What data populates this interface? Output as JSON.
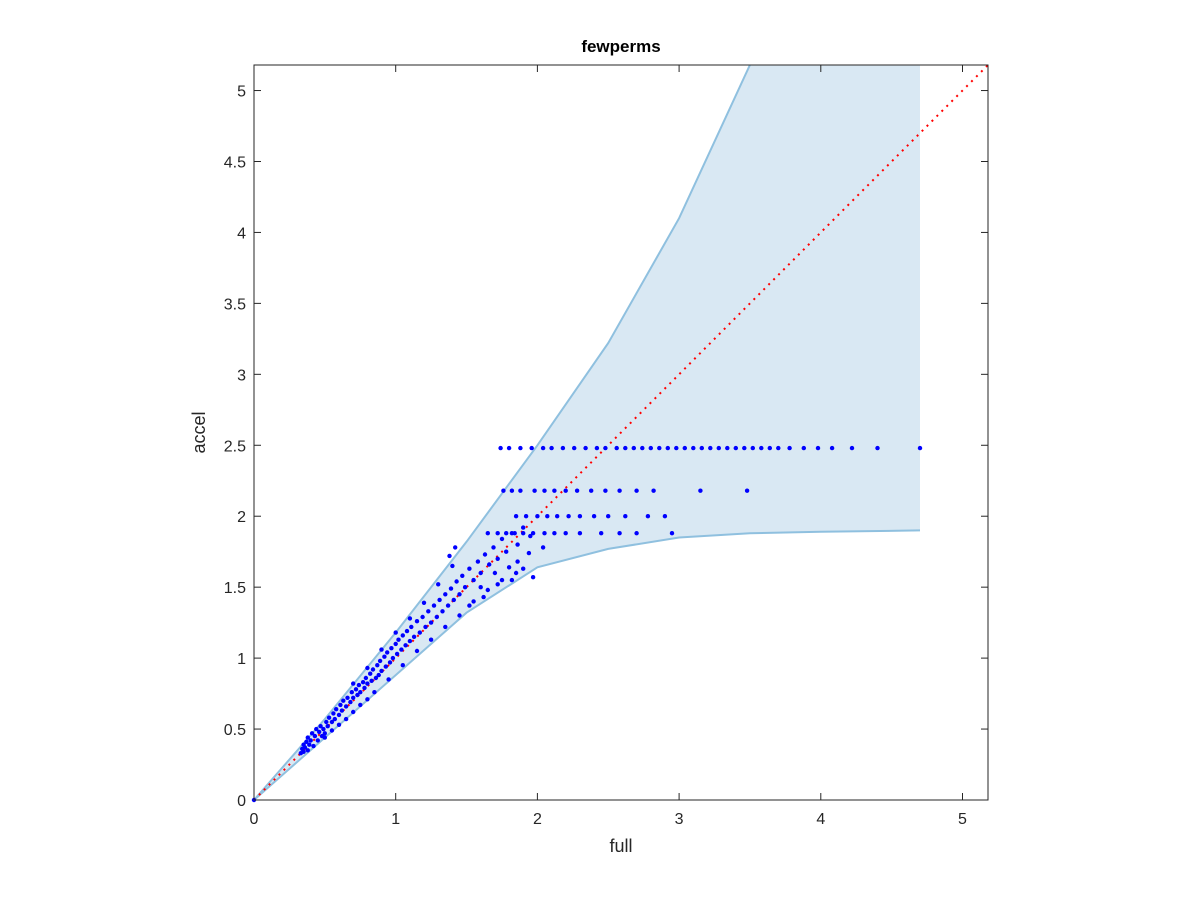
{
  "chart_data": {
    "type": "scatter",
    "title": "fewperms",
    "xlabel": "full",
    "ylabel": "accel",
    "xlim": [
      0,
      5.18
    ],
    "ylim": [
      0,
      5.18
    ],
    "x_ticks": [
      0,
      1,
      2,
      3,
      4,
      5
    ],
    "y_ticks": [
      0,
      0.5,
      1,
      1.5,
      2,
      2.5,
      3,
      3.5,
      4,
      4.5,
      5
    ],
    "x_tick_labels": [
      "0",
      "1",
      "2",
      "3",
      "4",
      "5"
    ],
    "y_tick_labels": [
      "0",
      "0.5",
      "1",
      "1.5",
      "2",
      "2.5",
      "3",
      "3.5",
      "4",
      "4.5",
      "5"
    ],
    "grid": false,
    "colors": {
      "points": "#0000ff",
      "band_fill": "#d9e8f3",
      "band_edge": "#8fc0df",
      "reference_line": "#ff0000",
      "axes": "#262626"
    },
    "band": {
      "x_max": 4.7,
      "upper": [
        [
          0,
          0
        ],
        [
          0.5,
          0.57
        ],
        [
          1,
          1.18
        ],
        [
          1.5,
          1.82
        ],
        [
          2,
          2.5
        ],
        [
          2.5,
          3.22
        ],
        [
          3,
          4.1
        ],
        [
          3.5,
          5.18
        ]
      ],
      "lower": [
        [
          0,
          0
        ],
        [
          0.5,
          0.44
        ],
        [
          1,
          0.88
        ],
        [
          1.5,
          1.32
        ],
        [
          2,
          1.64
        ],
        [
          2.5,
          1.77
        ],
        [
          3,
          1.85
        ],
        [
          3.5,
          1.88
        ],
        [
          4,
          1.89
        ],
        [
          4.7,
          1.9
        ]
      ]
    },
    "reference_line": {
      "style": "dotted",
      "from": [
        0,
        0
      ],
      "to": [
        5.18,
        5.18
      ]
    },
    "series": [
      {
        "points": [
          [
            0.0,
            0.0
          ],
          [
            0.33,
            0.33
          ],
          [
            0.34,
            0.36
          ],
          [
            0.35,
            0.34
          ],
          [
            0.35,
            0.39
          ],
          [
            0.36,
            0.37
          ],
          [
            0.37,
            0.41
          ],
          [
            0.38,
            0.35
          ],
          [
            0.38,
            0.44
          ],
          [
            0.39,
            0.39
          ],
          [
            0.4,
            0.42
          ],
          [
            0.41,
            0.47
          ],
          [
            0.42,
            0.38
          ],
          [
            0.43,
            0.45
          ],
          [
            0.44,
            0.5
          ],
          [
            0.45,
            0.42
          ],
          [
            0.46,
            0.48
          ],
          [
            0.47,
            0.52
          ],
          [
            0.48,
            0.45
          ],
          [
            0.49,
            0.5
          ],
          [
            0.5,
            0.47
          ],
          [
            0.51,
            0.55
          ],
          [
            0.52,
            0.52
          ],
          [
            0.53,
            0.58
          ],
          [
            0.55,
            0.55
          ],
          [
            0.56,
            0.61
          ],
          [
            0.57,
            0.57
          ],
          [
            0.58,
            0.64
          ],
          [
            0.6,
            0.6
          ],
          [
            0.61,
            0.67
          ],
          [
            0.62,
            0.63
          ],
          [
            0.63,
            0.7
          ],
          [
            0.65,
            0.66
          ],
          [
            0.66,
            0.72
          ],
          [
            0.68,
            0.69
          ],
          [
            0.69,
            0.76
          ],
          [
            0.7,
            0.72
          ],
          [
            0.72,
            0.78
          ],
          [
            0.73,
            0.74
          ],
          [
            0.74,
            0.81
          ],
          [
            0.75,
            0.76
          ],
          [
            0.77,
            0.83
          ],
          [
            0.78,
            0.79
          ],
          [
            0.79,
            0.86
          ],
          [
            0.8,
            0.82
          ],
          [
            0.82,
            0.89
          ],
          [
            0.83,
            0.84
          ],
          [
            0.84,
            0.92
          ],
          [
            0.86,
            0.86
          ],
          [
            0.87,
            0.95
          ],
          [
            0.88,
            0.88
          ],
          [
            0.89,
            0.98
          ],
          [
            0.9,
            0.91
          ],
          [
            0.92,
            1.01
          ],
          [
            0.93,
            0.94
          ],
          [
            0.94,
            1.04
          ],
          [
            0.96,
            0.97
          ],
          [
            0.97,
            1.07
          ],
          [
            0.98,
            1.0
          ],
          [
            1.0,
            1.1
          ],
          [
            1.01,
            1.03
          ],
          [
            1.02,
            1.13
          ],
          [
            1.04,
            1.06
          ],
          [
            1.05,
            1.16
          ],
          [
            1.07,
            1.09
          ],
          [
            1.08,
            1.19
          ],
          [
            1.1,
            1.12
          ],
          [
            1.11,
            1.22
          ],
          [
            1.13,
            1.15
          ],
          [
            1.15,
            1.26
          ],
          [
            1.17,
            1.18
          ],
          [
            1.19,
            1.29
          ],
          [
            1.21,
            1.22
          ],
          [
            1.23,
            1.33
          ],
          [
            1.25,
            1.25
          ],
          [
            1.27,
            1.37
          ],
          [
            1.29,
            1.29
          ],
          [
            1.31,
            1.41
          ],
          [
            1.33,
            1.33
          ],
          [
            1.35,
            1.45
          ],
          [
            1.37,
            1.37
          ],
          [
            1.39,
            1.49
          ],
          [
            1.41,
            1.41
          ],
          [
            1.43,
            1.54
          ],
          [
            1.45,
            1.45
          ],
          [
            1.47,
            1.58
          ],
          [
            1.49,
            1.5
          ],
          [
            1.52,
            1.63
          ],
          [
            1.55,
            1.55
          ],
          [
            1.58,
            1.68
          ],
          [
            1.6,
            1.6
          ],
          [
            1.63,
            1.73
          ],
          [
            1.66,
            1.66
          ],
          [
            1.69,
            1.78
          ],
          [
            1.72,
            1.7
          ],
          [
            1.75,
            1.84
          ],
          [
            1.78,
            1.75
          ],
          [
            1.82,
            1.88
          ],
          [
            1.86,
            1.8
          ],
          [
            1.9,
            1.92
          ],
          [
            1.95,
            1.86
          ],
          [
            0.5,
            0.44
          ],
          [
            0.55,
            0.49
          ],
          [
            0.6,
            0.53
          ],
          [
            0.65,
            0.57
          ],
          [
            0.7,
            0.62
          ],
          [
            0.75,
            0.67
          ],
          [
            0.8,
            0.71
          ],
          [
            0.85,
            0.76
          ],
          [
            0.95,
            0.85
          ],
          [
            1.05,
            0.95
          ],
          [
            1.15,
            1.05
          ],
          [
            1.25,
            1.13
          ],
          [
            1.35,
            1.22
          ],
          [
            1.45,
            1.3
          ],
          [
            1.55,
            1.4
          ],
          [
            1.65,
            1.48
          ],
          [
            1.75,
            1.55
          ],
          [
            1.85,
            1.6
          ],
          [
            1.9,
            1.63
          ],
          [
            1.97,
            1.57
          ],
          [
            0.7,
            0.82
          ],
          [
            0.8,
            0.93
          ],
          [
            0.9,
            1.06
          ],
          [
            1.0,
            1.18
          ],
          [
            1.1,
            1.28
          ],
          [
            1.2,
            1.39
          ],
          [
            1.3,
            1.52
          ],
          [
            1.4,
            1.65
          ],
          [
            1.42,
            1.78
          ],
          [
            1.38,
            1.72
          ],
          [
            1.6,
            1.5
          ],
          [
            1.7,
            1.6
          ],
          [
            1.8,
            1.64
          ],
          [
            1.86,
            1.68
          ],
          [
            1.52,
            1.37
          ],
          [
            1.62,
            1.43
          ],
          [
            1.72,
            1.52
          ],
          [
            1.82,
            1.55
          ],
          [
            1.94,
            1.74
          ],
          [
            2.04,
            1.78
          ],
          [
            1.65,
            1.88
          ],
          [
            1.72,
            1.88
          ],
          [
            1.78,
            1.88
          ],
          [
            1.84,
            1.88
          ],
          [
            1.9,
            1.88
          ],
          [
            1.97,
            1.88
          ],
          [
            2.05,
            1.88
          ],
          [
            2.12,
            1.88
          ],
          [
            2.2,
            1.88
          ],
          [
            2.3,
            1.88
          ],
          [
            2.45,
            1.88
          ],
          [
            2.58,
            1.88
          ],
          [
            2.7,
            1.88
          ],
          [
            2.95,
            1.88
          ],
          [
            1.85,
            2.0
          ],
          [
            1.92,
            2.0
          ],
          [
            2.0,
            2.0
          ],
          [
            2.07,
            2.0
          ],
          [
            2.14,
            2.0
          ],
          [
            2.22,
            2.0
          ],
          [
            2.3,
            2.0
          ],
          [
            2.4,
            2.0
          ],
          [
            2.5,
            2.0
          ],
          [
            2.62,
            2.0
          ],
          [
            2.78,
            2.0
          ],
          [
            2.9,
            2.0
          ],
          [
            1.76,
            2.18
          ],
          [
            1.82,
            2.18
          ],
          [
            1.88,
            2.18
          ],
          [
            1.98,
            2.18
          ],
          [
            2.05,
            2.18
          ],
          [
            2.12,
            2.18
          ],
          [
            2.2,
            2.18
          ],
          [
            2.28,
            2.18
          ],
          [
            2.38,
            2.18
          ],
          [
            2.48,
            2.18
          ],
          [
            2.58,
            2.18
          ],
          [
            2.7,
            2.18
          ],
          [
            2.82,
            2.18
          ],
          [
            3.15,
            2.18
          ],
          [
            3.48,
            2.18
          ],
          [
            1.74,
            2.48
          ],
          [
            1.8,
            2.48
          ],
          [
            1.88,
            2.48
          ],
          [
            1.96,
            2.48
          ],
          [
            2.04,
            2.48
          ],
          [
            2.1,
            2.48
          ],
          [
            2.18,
            2.48
          ],
          [
            2.26,
            2.48
          ],
          [
            2.34,
            2.48
          ],
          [
            2.42,
            2.48
          ],
          [
            2.48,
            2.48
          ],
          [
            2.56,
            2.48
          ],
          [
            2.62,
            2.48
          ],
          [
            2.68,
            2.48
          ],
          [
            2.74,
            2.48
          ],
          [
            2.8,
            2.48
          ],
          [
            2.86,
            2.48
          ],
          [
            2.92,
            2.48
          ],
          [
            2.98,
            2.48
          ],
          [
            3.04,
            2.48
          ],
          [
            3.1,
            2.48
          ],
          [
            3.16,
            2.48
          ],
          [
            3.22,
            2.48
          ],
          [
            3.28,
            2.48
          ],
          [
            3.34,
            2.48
          ],
          [
            3.4,
            2.48
          ],
          [
            3.46,
            2.48
          ],
          [
            3.52,
            2.48
          ],
          [
            3.58,
            2.48
          ],
          [
            3.64,
            2.48
          ],
          [
            3.7,
            2.48
          ],
          [
            3.78,
            2.48
          ],
          [
            3.88,
            2.48
          ],
          [
            3.98,
            2.48
          ],
          [
            4.08,
            2.48
          ],
          [
            4.22,
            2.48
          ],
          [
            4.4,
            2.48
          ],
          [
            4.7,
            2.48
          ]
        ]
      }
    ]
  }
}
